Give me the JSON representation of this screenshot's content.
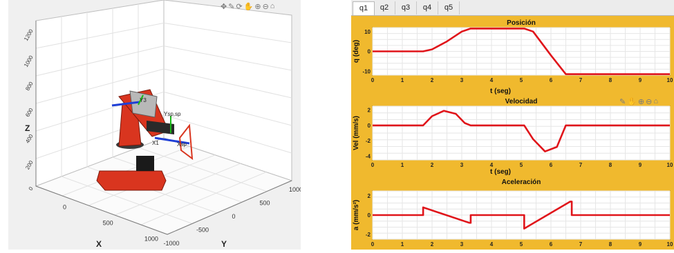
{
  "robot_view": {
    "axis_labels": {
      "x": "X",
      "y": "Y",
      "z": "Z"
    },
    "z_ticks": [
      "0",
      "200",
      "400",
      "600",
      "800",
      "1000",
      "1200"
    ],
    "x_ticks": [
      "0",
      "500",
      "1000"
    ],
    "y_ticks": [
      "-1000",
      "-500",
      "0",
      "500",
      "1000"
    ],
    "frame_labels": {
      "y3": "Y3",
      "ysp": "Ysp,sp",
      "x1": "X1",
      "xsp": "Xsp"
    },
    "robot_color": "#d9351f",
    "toolbar_icons": [
      "pan-icon",
      "brush-icon",
      "rotate-icon",
      "hand-icon",
      "zoom-in-icon",
      "zoom-out-icon",
      "home-icon"
    ]
  },
  "tabs": [
    {
      "label": "q1",
      "active": true
    },
    {
      "label": "q2",
      "active": false
    },
    {
      "label": "q3",
      "active": false
    },
    {
      "label": "q4",
      "active": false
    },
    {
      "label": "q5",
      "active": false
    }
  ],
  "chart_data": [
    {
      "type": "line",
      "title": "Posición",
      "xlabel": "t (seg)",
      "ylabel": "q (deg)",
      "xlim": [
        0,
        10
      ],
      "ylim": [
        -12,
        12
      ],
      "xticks": [
        0,
        1,
        2,
        3,
        4,
        5,
        6,
        7,
        8,
        9,
        10
      ],
      "yticks": [
        -10,
        0,
        10
      ],
      "series": [
        {
          "x": [
            0,
            1.7,
            2.0,
            2.5,
            3.0,
            3.3,
            5.1,
            5.4,
            6.0,
            6.5,
            10
          ],
          "y": [
            0,
            0,
            1,
            5,
            10,
            11.5,
            11.5,
            10,
            -2,
            -11.5,
            -11.5
          ]
        }
      ]
    },
    {
      "type": "line",
      "title": "Velocidad",
      "xlabel": "t (seg)",
      "ylabel": "Vel (mm/s)",
      "xlim": [
        0,
        10
      ],
      "ylim": [
        -4.5,
        2.5
      ],
      "xticks": [
        0,
        1,
        2,
        3,
        4,
        5,
        6,
        7,
        8,
        9,
        10
      ],
      "yticks": [
        -4,
        -2,
        0,
        2
      ],
      "series": [
        {
          "x": [
            0,
            1.7,
            2.0,
            2.4,
            2.8,
            3.1,
            3.3,
            5.1,
            5.4,
            5.8,
            6.2,
            6.5,
            10
          ],
          "y": [
            0,
            0,
            1.2,
            1.9,
            1.5,
            0.3,
            0,
            0,
            -1.8,
            -3.4,
            -2.8,
            0,
            0
          ]
        }
      ]
    },
    {
      "type": "line",
      "title": "Aceleración",
      "xlabel": "",
      "ylabel": "a (mm/s²)",
      "xlim": [
        0,
        10
      ],
      "ylim": [
        -2.5,
        2.5
      ],
      "xticks": [
        0,
        1,
        2,
        3,
        4,
        5,
        6,
        7,
        8,
        9,
        10
      ],
      "yticks": [
        -2,
        0,
        2
      ],
      "series": [
        {
          "x": [
            0,
            1.65,
            1.7,
            1.7,
            3.25,
            3.3,
            3.3,
            5.05,
            5.1,
            5.1,
            6.65,
            6.7,
            6.7,
            10
          ],
          "y": [
            0,
            0,
            0,
            0.8,
            -0.8,
            -0.8,
            0,
            0,
            0,
            -1.4,
            1.4,
            1.4,
            0,
            0
          ]
        }
      ]
    }
  ]
}
